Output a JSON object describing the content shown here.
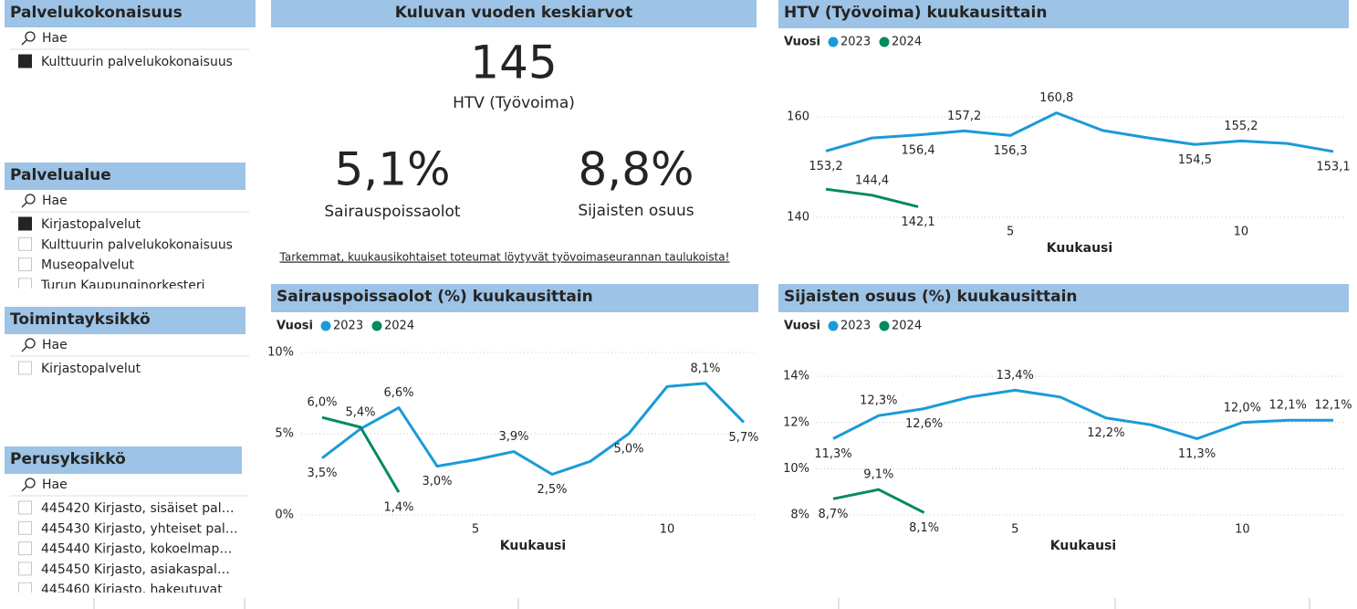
{
  "slicers": [
    {
      "title": "Palvelukokonaisuus",
      "search": "Hae",
      "items": [
        {
          "label": "Kulttuurin palvelukokonaisuus",
          "selected": true
        }
      ]
    },
    {
      "title": "Palvelualue",
      "search": "Hae",
      "items": [
        {
          "label": "Kirjastopalvelut",
          "selected": true
        },
        {
          "label": "Kulttuurin palvelukokonaisuus",
          "selected": false
        },
        {
          "label": "Museopalvelut",
          "selected": false
        },
        {
          "label": "Turun Kaupunginorkesteri",
          "selected": false
        }
      ]
    },
    {
      "title": "Toimintayksikkö",
      "search": "Hae",
      "items": [
        {
          "label": "Kirjastopalvelut",
          "selected": false
        }
      ]
    },
    {
      "title": "Perusyksikkö",
      "search": "Hae",
      "items": [
        {
          "label": "445420 Kirjasto, sisäiset pal…",
          "selected": false
        },
        {
          "label": "445430 Kirjasto, yhteiset pal…",
          "selected": false
        },
        {
          "label": "445440 Kirjasto, kokoelmap…",
          "selected": false
        },
        {
          "label": "445450 Kirjasto, asiakaspal…",
          "selected": false
        },
        {
          "label": "445460 Kirjasto, hakeutuvat",
          "selected": false
        }
      ]
    }
  ],
  "kpi_card": {
    "title": "Kuluvan vuoden keskiarvot",
    "main": {
      "value": "145",
      "label": "HTV (Työvoima)"
    },
    "left": {
      "value": "5,1%",
      "label": "Sairauspoissaolot"
    },
    "right": {
      "value": "8,8%",
      "label": "Sijaisten osuus"
    },
    "link": "Tarkemmat, kuukausikohtaiset toteumat löytyvät työvoimaseurannan taulukoista!"
  },
  "chart_data": [
    {
      "type": "line",
      "title": "HTV (Työvoima) kuukausittain",
      "legend_title": "Vuosi",
      "x_label": "Kuukausi",
      "x": [
        1,
        2,
        3,
        4,
        5,
        6,
        7,
        8,
        9,
        10,
        11,
        12
      ],
      "xlim": [
        1,
        12
      ],
      "xticks": [
        5,
        10
      ],
      "ylim": [
        140,
        167
      ],
      "yticks": [
        140,
        160
      ],
      "grid": true,
      "series": [
        {
          "name": "2023",
          "color": "#1a9bd7",
          "values": [
            153.2,
            155.8,
            156.4,
            157.2,
            156.3,
            160.8,
            157.3,
            155.8,
            154.5,
            155.2,
            154.7,
            153.1
          ],
          "value_labels": [
            "153,2",
            null,
            "156,4",
            "157,2",
            "156,3",
            "160,8",
            null,
            null,
            "154,5",
            "155,2",
            null,
            "153,1"
          ]
        },
        {
          "name": "2024",
          "color": "#07895f",
          "values": [
            145.6,
            144.4,
            142.1,
            null,
            null,
            null,
            null,
            null,
            null,
            null,
            null,
            null
          ],
          "value_labels": [
            null,
            "144,4",
            "142,1",
            null,
            null,
            null,
            null,
            null,
            null,
            null,
            null,
            null
          ]
        }
      ]
    },
    {
      "type": "line",
      "title": "Sairauspoissaolot (%) kuukausittain",
      "legend_title": "Vuosi",
      "x_label": "Kuukausi",
      "x": [
        1,
        2,
        3,
        4,
        5,
        6,
        7,
        8,
        9,
        10,
        11,
        12
      ],
      "xlim": [
        1,
        12
      ],
      "xticks": [
        5,
        10
      ],
      "ylim": [
        0,
        10
      ],
      "yticks": [
        {
          "value": 0,
          "label": "0%"
        },
        {
          "value": 5,
          "label": "5%"
        },
        {
          "value": 10,
          "label": "10%"
        }
      ],
      "grid": true,
      "series": [
        {
          "name": "2023",
          "color": "#1a9bd7",
          "values": [
            3.5,
            5.3,
            6.6,
            3.0,
            3.4,
            3.9,
            2.5,
            3.3,
            5.0,
            7.9,
            8.1,
            5.7
          ],
          "value_labels": [
            "3,5%",
            null,
            "6,6%",
            "3,0%",
            null,
            "3,9%",
            "2,5%",
            null,
            "5,0%",
            null,
            "8,1%",
            "5,7%"
          ]
        },
        {
          "name": "2024",
          "color": "#07895f",
          "values": [
            6.0,
            5.4,
            1.4,
            null,
            null,
            null,
            null,
            null,
            null,
            null,
            null,
            null
          ],
          "value_labels": [
            "6,0%",
            "5,4%",
            "1,4%",
            null,
            null,
            null,
            null,
            null,
            null,
            null,
            null,
            null
          ]
        }
      ]
    },
    {
      "type": "line",
      "title": "Sijaisten osuus (%) kuukausittain",
      "legend_title": "Vuosi",
      "x_label": "Kuukausi",
      "x": [
        1,
        2,
        3,
        4,
        5,
        6,
        7,
        8,
        9,
        10,
        11,
        12
      ],
      "xlim": [
        1,
        12
      ],
      "xticks": [
        5,
        10
      ],
      "ylim": [
        8,
        14.5
      ],
      "yticks": [
        {
          "value": 8,
          "label": "8%"
        },
        {
          "value": 10,
          "label": "10%"
        },
        {
          "value": 12,
          "label": "12%"
        },
        {
          "value": 14,
          "label": "14%"
        }
      ],
      "grid": true,
      "series": [
        {
          "name": "2023",
          "color": "#1a9bd7",
          "values": [
            11.3,
            12.3,
            12.6,
            13.1,
            13.4,
            13.1,
            12.2,
            11.9,
            11.3,
            12.0,
            12.1,
            12.1
          ],
          "value_labels": [
            "11,3%",
            "12,3%",
            "12,6%",
            null,
            "13,4%",
            null,
            "12,2%",
            null,
            "11,3%",
            "12,0%",
            "12,1%",
            "12,1%"
          ]
        },
        {
          "name": "2024",
          "color": "#07895f",
          "values": [
            8.7,
            9.1,
            8.1,
            null,
            null,
            null,
            null,
            null,
            null,
            null,
            null,
            null
          ],
          "value_labels": [
            "8,7%",
            "9,1%",
            "8,1%",
            null,
            null,
            null,
            null,
            null,
            null,
            null,
            null,
            null
          ]
        }
      ]
    }
  ]
}
